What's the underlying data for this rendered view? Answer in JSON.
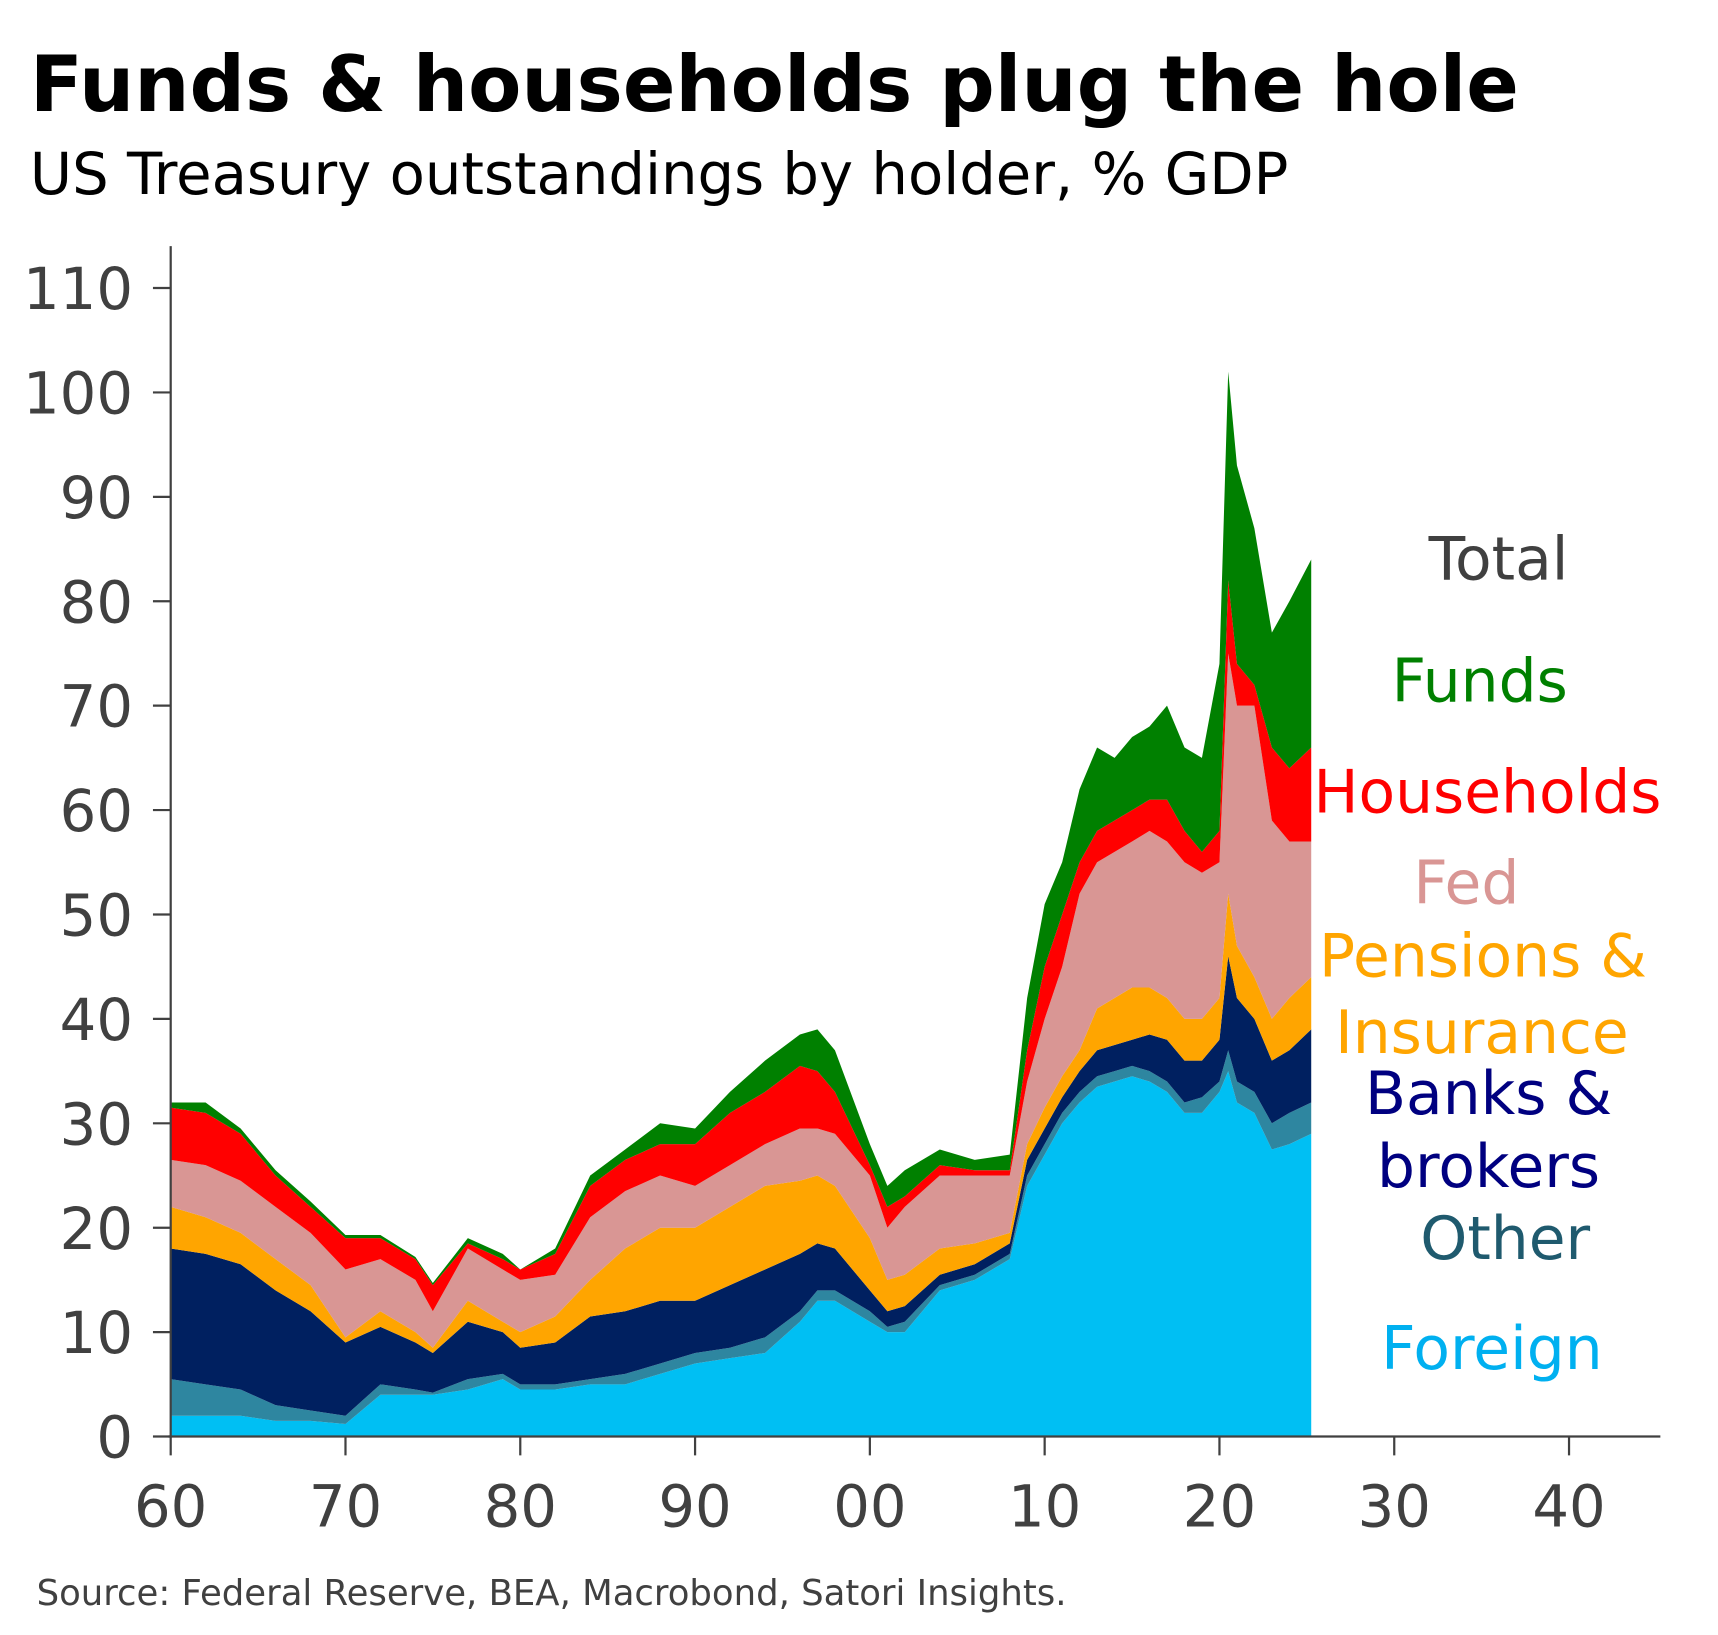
{
  "chart_data": {
    "type": "area",
    "title": "Funds & households plug the hole",
    "subtitle": "US Treasury outstandings by holder, % GDP",
    "source": "Source: Federal Reserve, BEA, Macrobond, Satori Insights.",
    "xlabel": "",
    "ylabel": "",
    "xlim": [
      1960,
      2045
    ],
    "ylim": [
      0,
      114
    ],
    "stacked": true,
    "grid": false,
    "x_ticks": [
      1960,
      1970,
      1980,
      1990,
      2000,
      2010,
      2020,
      2030,
      2040
    ],
    "x_tick_labels": [
      "60",
      "70",
      "80",
      "90",
      "00",
      "10",
      "20",
      "30",
      "40"
    ],
    "y_ticks": [
      0,
      10,
      20,
      30,
      40,
      50,
      60,
      70,
      80,
      90,
      100,
      110
    ],
    "y_tick_labels": [
      "0",
      "10",
      "20",
      "30",
      "40",
      "50",
      "60",
      "70",
      "80",
      "90",
      "100",
      "110"
    ],
    "x": [
      1960,
      1962,
      1964,
      1966,
      1968,
      1970,
      1972,
      1974,
      1975,
      1977,
      1979,
      1980,
      1982,
      1984,
      1986,
      1988,
      1990,
      1992,
      1994,
      1996,
      1997,
      1998,
      2000,
      2001,
      2002,
      2004,
      2006,
      2008,
      2009,
      2010,
      2011,
      2012,
      2013,
      2014,
      2015,
      2016,
      2017,
      2018,
      2019,
      2020,
      2020.5,
      2021,
      2022,
      2023,
      2024,
      2025.25
    ],
    "series": [
      {
        "name": "Foreign",
        "color": "#00BFF3",
        "values": [
          2,
          2,
          2,
          1.5,
          1.5,
          1.2,
          4,
          4,
          4,
          4.5,
          5.5,
          4.5,
          4.5,
          5,
          5,
          6,
          7,
          7.5,
          8,
          11,
          13,
          13,
          11,
          10,
          10,
          14,
          15,
          17,
          24,
          27,
          30,
          32,
          33.5,
          34,
          34.5,
          34,
          33,
          31,
          31,
          33,
          35,
          32,
          31,
          27.5,
          28,
          29
        ]
      },
      {
        "name": "Other",
        "color": "#2E86A0",
        "values": [
          3.5,
          3,
          2.5,
          1.5,
          1,
          0.8,
          1,
          0.5,
          0.2,
          1,
          0.5,
          0.5,
          0.5,
          0.5,
          1,
          1,
          1,
          1,
          1.5,
          1,
          1,
          1,
          1,
          0.5,
          1,
          0.5,
          0.5,
          0.5,
          1,
          1,
          1,
          1,
          1,
          1,
          1,
          1,
          1,
          1,
          1.5,
          1,
          2,
          2,
          2,
          2.5,
          3,
          3
        ]
      },
      {
        "name": "Banks & brokers",
        "color": "#002060",
        "values": [
          12.5,
          12.5,
          12,
          11,
          9.5,
          7,
          5.5,
          4.5,
          3.8,
          5.5,
          4,
          3.5,
          4,
          6,
          6,
          6,
          5,
          6,
          6.5,
          5.5,
          4.5,
          4,
          2,
          1.5,
          1.5,
          1,
          1,
          1,
          1.5,
          1.5,
          1.5,
          2,
          2.5,
          2.5,
          2.5,
          3.5,
          4,
          4,
          3.5,
          4,
          9,
          8,
          7,
          6,
          6,
          7
        ]
      },
      {
        "name": "Pensions & Insurance",
        "color": "#FFA500",
        "values": [
          4,
          3.5,
          3,
          3,
          2.5,
          0.5,
          1.5,
          1,
          0.5,
          2,
          1,
          1.5,
          2.5,
          3.5,
          6,
          7,
          7,
          7.5,
          8,
          7,
          6.5,
          6,
          5,
          3,
          3,
          2.5,
          2,
          1,
          1.5,
          2,
          2,
          2,
          4,
          4.5,
          5,
          4.5,
          4,
          4,
          4,
          4,
          6,
          5,
          4,
          4,
          5,
          5
        ]
      },
      {
        "name": "Fed",
        "color": "#D99694",
        "values": [
          4.5,
          5,
          5,
          5,
          5,
          6.5,
          5,
          5,
          3.5,
          5,
          5,
          5,
          4,
          6,
          5.5,
          5,
          4,
          4,
          4,
          5,
          4.5,
          5,
          6,
          5,
          6.5,
          7,
          6.5,
          5.5,
          6,
          8.5,
          10.5,
          15,
          14,
          14,
          14,
          15,
          15,
          15,
          14,
          13,
          23,
          23,
          26,
          19,
          15,
          13
        ]
      },
      {
        "name": "Households",
        "color": "#FF0000",
        "values": [
          5,
          5,
          4.5,
          3,
          2.5,
          3,
          2,
          2,
          2.5,
          0.5,
          1,
          1,
          2,
          3,
          3,
          3,
          4,
          5,
          5,
          6,
          5.5,
          4,
          1,
          2,
          1,
          1,
          0.5,
          0.5,
          3,
          5,
          5,
          3,
          3,
          3,
          3,
          3,
          4,
          3,
          2,
          3,
          7,
          4,
          2,
          7,
          7,
          9
        ]
      },
      {
        "name": "Funds",
        "color": "#008000",
        "values": [
          0.5,
          1,
          0.5,
          0.5,
          0.5,
          0.3,
          0.3,
          0.2,
          0.2,
          0.5,
          0.5,
          0,
          0.5,
          1,
          1,
          2,
          1.5,
          2,
          3,
          3,
          4,
          4,
          2,
          2,
          2.5,
          1.5,
          1,
          1.5,
          5,
          6,
          5,
          7,
          8,
          6,
          7,
          7,
          9,
          8,
          9,
          16,
          20,
          19,
          15,
          11,
          16,
          18
        ]
      }
    ],
    "legend": {
      "placement": "right",
      "entries": [
        {
          "text": "Total",
          "color": "#404040"
        },
        {
          "text": "Funds",
          "color": "#008000"
        },
        {
          "text": "Households",
          "color": "#FF0000"
        },
        {
          "text": "Fed",
          "color": "#D99694"
        },
        {
          "text": "Pensions &",
          "color": "#FFA500"
        },
        {
          "text": "Insurance",
          "color": "#FFA500"
        },
        {
          "text": "Banks &",
          "color": "#000080"
        },
        {
          "text": "brokers",
          "color": "#000080"
        },
        {
          "text": "Other",
          "color": "#1F5A6E"
        },
        {
          "text": "Foreign",
          "color": "#00B0F0"
        }
      ]
    }
  }
}
